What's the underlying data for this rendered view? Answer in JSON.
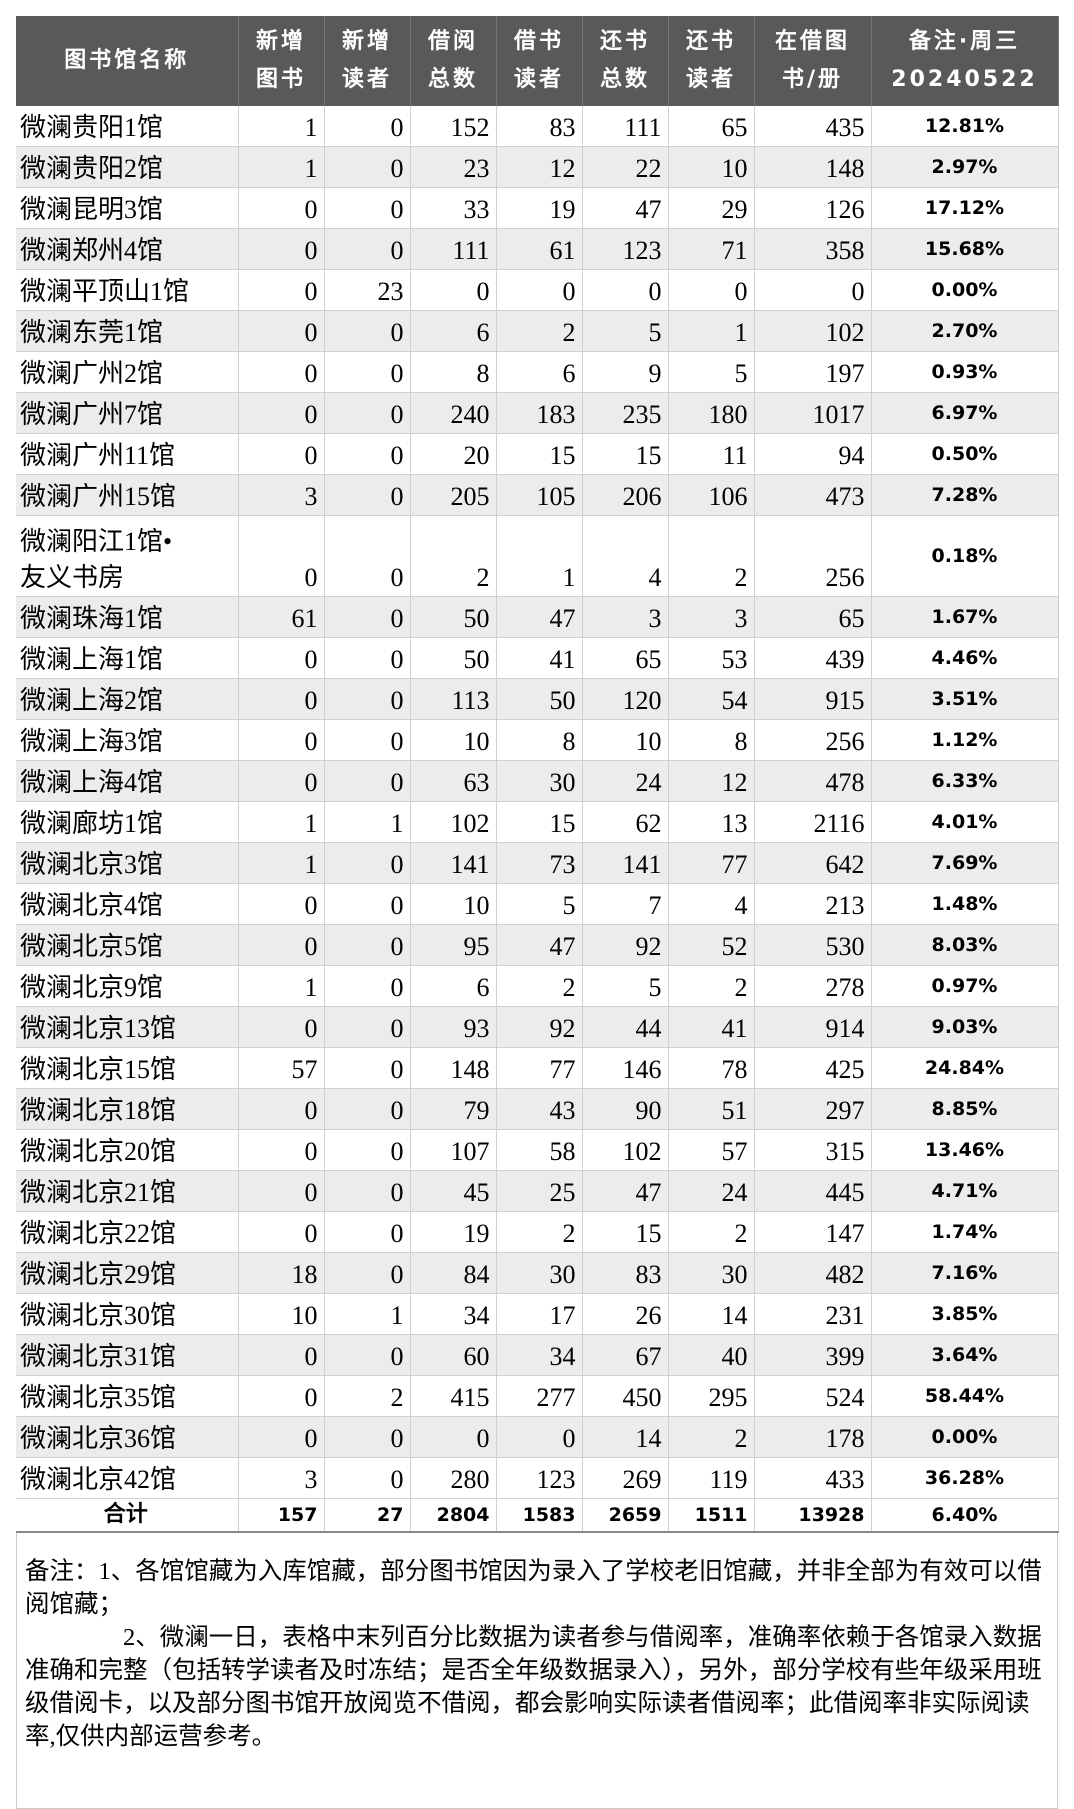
{
  "table": {
    "headers": [
      "图书馆名称",
      "新增\n图书",
      "新增\n读者",
      "借阅\n总数",
      "借书\n读者",
      "还书\n总数",
      "还书\n读者",
      "在借图\n书/册",
      "备注·周三\n20240522"
    ],
    "rows": [
      [
        "微澜贵阳1馆",
        1,
        0,
        152,
        83,
        111,
        65,
        435,
        "12.81%"
      ],
      [
        "微澜贵阳2馆",
        1,
        0,
        23,
        12,
        22,
        10,
        148,
        "2.97%"
      ],
      [
        "微澜昆明3馆",
        0,
        0,
        33,
        19,
        47,
        29,
        126,
        "17.12%"
      ],
      [
        "微澜郑州4馆",
        0,
        0,
        111,
        61,
        123,
        71,
        358,
        "15.68%"
      ],
      [
        "微澜平顶山1馆",
        0,
        23,
        0,
        0,
        0,
        0,
        0,
        "0.00%"
      ],
      [
        "微澜东莞1馆",
        0,
        0,
        6,
        2,
        5,
        1,
        102,
        "2.70%"
      ],
      [
        "微澜广州2馆",
        0,
        0,
        8,
        6,
        9,
        5,
        197,
        "0.93%"
      ],
      [
        "微澜广州7馆",
        0,
        0,
        240,
        183,
        235,
        180,
        1017,
        "6.97%"
      ],
      [
        "微澜广州11馆",
        0,
        0,
        20,
        15,
        15,
        11,
        94,
        "0.50%"
      ],
      [
        "微澜广州15馆",
        3,
        0,
        205,
        105,
        206,
        106,
        473,
        "7.28%"
      ],
      [
        "微澜阳江1馆•\n友义书房",
        0,
        0,
        2,
        1,
        4,
        2,
        256,
        "0.18%"
      ],
      [
        "微澜珠海1馆",
        61,
        0,
        50,
        47,
        3,
        3,
        65,
        "1.67%"
      ],
      [
        "微澜上海1馆",
        0,
        0,
        50,
        41,
        65,
        53,
        439,
        "4.46%"
      ],
      [
        "微澜上海2馆",
        0,
        0,
        113,
        50,
        120,
        54,
        915,
        "3.51%"
      ],
      [
        "微澜上海3馆",
        0,
        0,
        10,
        8,
        10,
        8,
        256,
        "1.12%"
      ],
      [
        "微澜上海4馆",
        0,
        0,
        63,
        30,
        24,
        12,
        478,
        "6.33%"
      ],
      [
        "微澜廊坊1馆",
        1,
        1,
        102,
        15,
        62,
        13,
        2116,
        "4.01%"
      ],
      [
        "微澜北京3馆",
        1,
        0,
        141,
        73,
        141,
        77,
        642,
        "7.69%"
      ],
      [
        "微澜北京4馆",
        0,
        0,
        10,
        5,
        7,
        4,
        213,
        "1.48%"
      ],
      [
        "微澜北京5馆",
        0,
        0,
        95,
        47,
        92,
        52,
        530,
        "8.03%"
      ],
      [
        "微澜北京9馆",
        1,
        0,
        6,
        2,
        5,
        2,
        278,
        "0.97%"
      ],
      [
        "微澜北京13馆",
        0,
        0,
        93,
        92,
        44,
        41,
        914,
        "9.03%"
      ],
      [
        "微澜北京15馆",
        57,
        0,
        148,
        77,
        146,
        78,
        425,
        "24.84%"
      ],
      [
        "微澜北京18馆",
        0,
        0,
        79,
        43,
        90,
        51,
        297,
        "8.85%"
      ],
      [
        "微澜北京20馆",
        0,
        0,
        107,
        58,
        102,
        57,
        315,
        "13.46%"
      ],
      [
        "微澜北京21馆",
        0,
        0,
        45,
        25,
        47,
        24,
        445,
        "4.71%"
      ],
      [
        "微澜北京22馆",
        0,
        0,
        19,
        2,
        15,
        2,
        147,
        "1.74%"
      ],
      [
        "微澜北京29馆",
        18,
        0,
        84,
        30,
        83,
        30,
        482,
        "7.16%"
      ],
      [
        "微澜北京30馆",
        10,
        1,
        34,
        17,
        26,
        14,
        231,
        "3.85%"
      ],
      [
        "微澜北京31馆",
        0,
        0,
        60,
        34,
        67,
        40,
        399,
        "3.64%"
      ],
      [
        "微澜北京35馆",
        0,
        2,
        415,
        277,
        450,
        295,
        524,
        "58.44%"
      ],
      [
        "微澜北京36馆",
        0,
        0,
        0,
        0,
        14,
        2,
        178,
        "0.00%"
      ],
      [
        "微澜北京42馆",
        3,
        0,
        280,
        123,
        269,
        119,
        433,
        "36.28%"
      ]
    ],
    "total": [
      "合计",
      157,
      27,
      2804,
      1583,
      2659,
      1511,
      13928,
      "6.40%"
    ]
  },
  "notes": [
    "备注：1、各馆馆藏为入库馆藏，部分图书馆因为录入了学校老旧馆藏，并非全部为有效可以借阅馆藏；",
    "2、微澜一日，表格中末列百分比数据为读者参与借阅率，准确率依赖于各馆录入数据准确和完整（包括转学读者及时冻结；是否全年级数据录入），另外，部分学校有些年级采用班级借阅卡，以及部分图书馆开放阅览不借阅，都会影响实际读者借阅率；此借阅率非实际阅读率,仅供内部运营参考。"
  ]
}
